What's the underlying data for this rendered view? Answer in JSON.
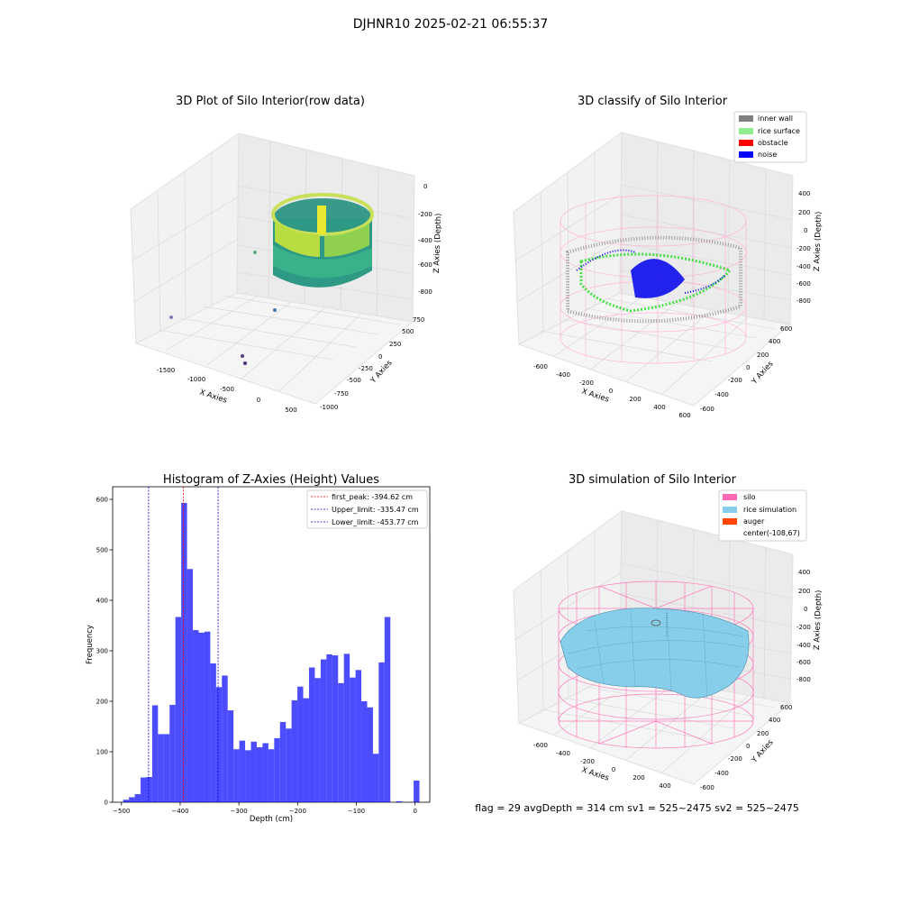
{
  "figure": {
    "suptitle": "DJHNR10 2025-02-21 06:55:37"
  },
  "panel_raw": {
    "title": "3D Plot of Silo Interior(row data)",
    "xlabel": "X Axies",
    "ylabel": "Y Axies",
    "zlabel": "Z Axies (Depth)",
    "xticks": [
      "-1500",
      "-1000",
      "-500",
      "0",
      "500"
    ],
    "yticks": [
      "750",
      "500",
      "250",
      "0",
      "-250",
      "-500",
      "-750",
      "-1000"
    ],
    "zticks": [
      "0",
      "-200",
      "-400",
      "-600",
      "-800"
    ]
  },
  "panel_classify": {
    "title": "3D classify of Silo Interior",
    "xlabel": "X Axies",
    "ylabel": "Y Axies",
    "zlabel": "Z Axies (Depth)",
    "xticks": [
      "-600",
      "-400",
      "-200",
      "0",
      "200",
      "400",
      "600"
    ],
    "yticks": [
      "600",
      "400",
      "200",
      "0",
      "-200",
      "-400",
      "-600"
    ],
    "zticks": [
      "400",
      "200",
      "0",
      "-200",
      "-400",
      "-600",
      "-800"
    ],
    "legend": [
      {
        "label": "inner wall",
        "color": "#808080"
      },
      {
        "label": "rice surface",
        "color": "#90ee90"
      },
      {
        "label": "obstacle",
        "color": "#ff0000"
      },
      {
        "label": "noise",
        "color": "#0000ff"
      }
    ]
  },
  "panel_sim": {
    "title": "3D simulation of Silo Interior",
    "xlabel": "X Axies",
    "ylabel": "Y Axies",
    "zlabel": "Z Axies (Depth)",
    "xticks": [
      "-600",
      "-400",
      "-200",
      "0",
      "200",
      "400"
    ],
    "yticks": [
      "600",
      "400",
      "200",
      "0",
      "-200",
      "-400",
      "-600"
    ],
    "zticks": [
      "400",
      "200",
      "0",
      "-200",
      "-400",
      "-600",
      "-800"
    ],
    "legend": [
      {
        "label": "silo",
        "color": "#ff69b4"
      },
      {
        "label": "rice simulation",
        "color": "#87ceeb"
      },
      {
        "label": "auger",
        "color": "#ff4500"
      },
      {
        "label": "center(-108,67)",
        "color": ""
      }
    ]
  },
  "footer": {
    "text": "flag = 29  avgDepth = 314 cm  sv1 = 525~2475  sv2 = 525~2475"
  },
  "chart_data": {
    "type": "bar",
    "title": "Histogram of Z-Axies (Height) Values",
    "xlabel": "Depth (cm)",
    "ylabel": "Frequency",
    "xlim": [
      -515,
      25
    ],
    "ylim": [
      0,
      625
    ],
    "xticks": [
      -500,
      -400,
      -300,
      -200,
      -100,
      0
    ],
    "yticks": [
      0,
      100,
      200,
      300,
      400,
      500,
      600
    ],
    "bar_color": "#0000ff",
    "bin_width": 9.89,
    "bin_starts": [
      -497.1,
      -487.2,
      -477.3,
      -467.4,
      -457.6,
      -447.7,
      -437.8,
      -427.9,
      -418.0,
      -408.1,
      -398.2,
      -388.3,
      -378.4,
      -368.5,
      -358.6,
      -348.7,
      -338.9,
      -329.0,
      -319.1,
      -309.2,
      -299.3,
      -289.4,
      -279.5,
      -269.6,
      -259.7,
      -249.8,
      -239.9,
      -230.0,
      -220.1,
      -210.3,
      -200.4,
      -190.5,
      -180.6,
      -170.7,
      -160.8,
      -150.9,
      -141.0,
      -131.1,
      -121.2,
      -111.3,
      -101.4,
      -91.5,
      -81.6,
      -71.8,
      -61.9,
      -52.0,
      -42.1,
      -32.2,
      -22.3,
      -12.4,
      -2.5
    ],
    "counts": [
      5,
      10,
      16,
      49,
      50,
      192,
      135,
      135,
      193,
      367,
      593,
      462,
      341,
      336,
      338,
      275,
      228,
      251,
      182,
      105,
      122,
      103,
      120,
      109,
      117,
      105,
      127,
      159,
      146,
      202,
      229,
      206,
      267,
      246,
      283,
      293,
      291,
      236,
      294,
      247,
      262,
      200,
      188,
      96,
      277,
      367,
      0,
      2,
      0,
      0,
      43
    ],
    "reference_lines": [
      {
        "label": "first_peak: -394.62 cm",
        "x": -394.62,
        "color": "#ff0000"
      },
      {
        "label": "Upper_limit: -335.47 cm",
        "x": -335.47,
        "color": "#0000cc"
      },
      {
        "label": "Lower_limit: -453.77 cm",
        "x": -453.77,
        "color": "#0000cc"
      }
    ]
  }
}
